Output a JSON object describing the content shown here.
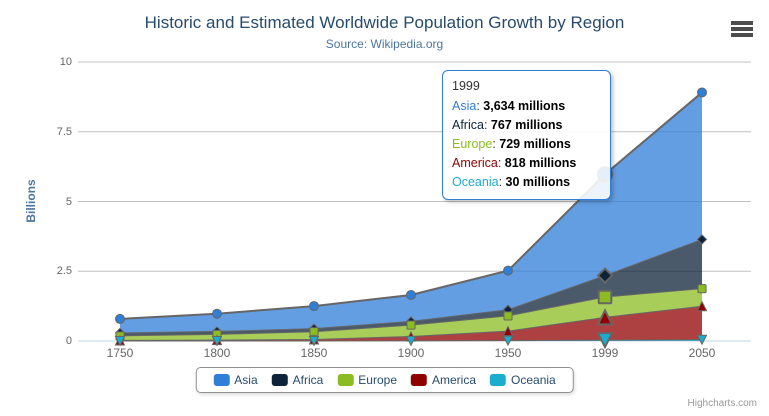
{
  "chart_data": {
    "type": "area",
    "stacking": "normal",
    "title": "Historic and Estimated Worldwide Population Growth by Region",
    "subtitle": "Source: Wikipedia.org",
    "xlabel": "",
    "ylabel": "Billions",
    "categories": [
      "1750",
      "1800",
      "1850",
      "1900",
      "1950",
      "1999",
      "2050"
    ],
    "ylim": [
      0,
      10
    ],
    "yticks": [
      0,
      2.5,
      5,
      7.5,
      10
    ],
    "ytick_labels": [
      "0",
      "2.5",
      "5",
      "7.5",
      "10"
    ],
    "unit": "millions",
    "grid": true,
    "legend_position": "bottom",
    "series": [
      {
        "name": "Asia",
        "color": "#2f7ed8",
        "marker": "circle",
        "values": [
          502,
          635,
          809,
          947,
          1402,
          3634,
          5268
        ]
      },
      {
        "name": "Africa",
        "color": "#0d233a",
        "marker": "diamond",
        "values": [
          106,
          107,
          111,
          133,
          221,
          767,
          1766
        ]
      },
      {
        "name": "Europe",
        "color": "#8bbc21",
        "marker": "square",
        "values": [
          163,
          203,
          276,
          408,
          547,
          729,
          628
        ]
      },
      {
        "name": "America",
        "color": "#910000",
        "marker": "triangle",
        "values": [
          18,
          31,
          54,
          156,
          339,
          818,
          1201
        ]
      },
      {
        "name": "Oceania",
        "color": "#1aadce",
        "marker": "triangle-down",
        "values": [
          2,
          2,
          2,
          6,
          13,
          30,
          46
        ]
      }
    ]
  },
  "tooltip": {
    "header": "1999",
    "hover_index": 5,
    "border_color": "#2f7ed8",
    "rows": [
      {
        "name": "Asia",
        "value": "3,634 millions"
      },
      {
        "name": "Africa",
        "value": "767 millions"
      },
      {
        "name": "Europe",
        "value": "729 millions"
      },
      {
        "name": "America",
        "value": "818 millions"
      },
      {
        "name": "Oceania",
        "value": "30 millions"
      }
    ]
  },
  "credits": {
    "text": "Highcharts.com"
  },
  "icons": {
    "context_menu": "hamburger-icon"
  },
  "style_colors": {
    "title": "#274b6d",
    "subtitle": "#4d759e",
    "axis_labels": "#666666",
    "gridline": "#c0c0c0",
    "axis_line": "#c0d0e0",
    "series_outline": "#666666"
  }
}
